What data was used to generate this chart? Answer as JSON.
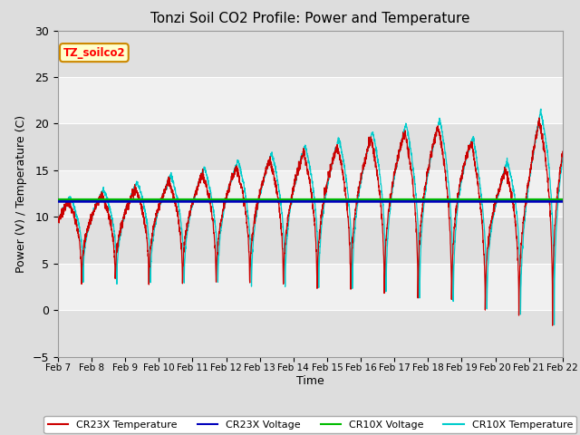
{
  "title": "Tonzi Soil CO2 Profile: Power and Temperature",
  "ylabel": "Power (V) / Temperature (C)",
  "xlabel": "Time",
  "ylim": [
    -5,
    30
  ],
  "yticks": [
    -5,
    0,
    5,
    10,
    15,
    20,
    25,
    30
  ],
  "xtick_labels": [
    "Feb 7",
    "Feb 8",
    "Feb 9",
    "Feb 10",
    "Feb 11",
    "Feb 12",
    "Feb 13",
    "Feb 14",
    "Feb 15",
    "Feb 16",
    "Feb 17",
    "Feb 18",
    "Feb 19",
    "Feb 20",
    "Feb 21",
    "Feb 22"
  ],
  "cr23x_voltage": 11.65,
  "cr10x_voltage": 11.85,
  "cr23x_color": "#cc0000",
  "cr10x_color": "#00cccc",
  "cr23x_voltage_color": "#0000bb",
  "cr10x_voltage_color": "#00bb00",
  "annotation_text": "TZ_soilco2",
  "annotation_bg": "#ffffcc",
  "annotation_border": "#cc8800",
  "fig_bg": "#dddddd",
  "plot_bg": "#f0f0f0",
  "band_dark": "#e0e0e0",
  "band_light": "#f0f0f0",
  "grid_color": "#ffffff"
}
